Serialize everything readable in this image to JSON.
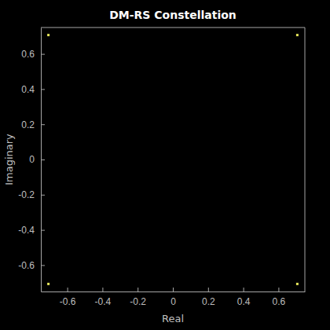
{
  "chart_data": {
    "type": "scatter",
    "title": "DM-RS Constellation",
    "x_label": "Real",
    "y_label": "Imaginary",
    "x": [
      0.7071,
      -0.7071,
      -0.7071,
      0.7071
    ],
    "values": [
      0.7071,
      0.7071,
      -0.7071,
      -0.7071
    ],
    "color": "#e6e65a",
    "marker": "square",
    "xlim": [
      -0.75,
      0.75
    ],
    "ylim": [
      -0.75,
      0.75
    ],
    "xticks": [
      -0.6,
      -0.4,
      -0.2,
      0,
      0.2,
      0.4,
      0.6
    ],
    "yticks": [
      -0.6,
      -0.4,
      -0.2,
      0,
      0.2,
      0.4,
      0.6
    ],
    "grid": false
  }
}
